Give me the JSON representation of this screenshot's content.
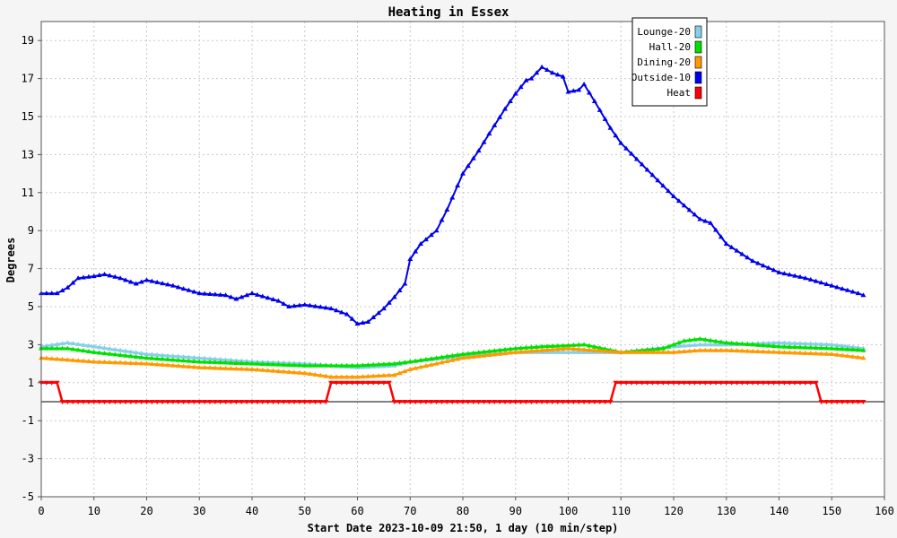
{
  "chart_data": {
    "type": "line",
    "title": "Heating in Essex",
    "xlabel": "Start Date 2023-10-09 21:50, 1 day (10 min/step)",
    "ylabel": "Degrees",
    "xlim": [
      0,
      160
    ],
    "ylim": [
      -5,
      20
    ],
    "x_ticks": [
      0,
      10,
      20,
      30,
      40,
      50,
      60,
      70,
      80,
      90,
      100,
      110,
      120,
      130,
      140,
      150,
      160
    ],
    "y_ticks": [
      -5,
      -3,
      -1,
      1,
      3,
      5,
      7,
      9,
      11,
      13,
      15,
      17,
      19
    ],
    "grid": true,
    "legend_position": "top-right",
    "series": [
      {
        "name": "Lounge-20",
        "color": "#87ceeb",
        "x": [
          0,
          5,
          10,
          20,
          30,
          40,
          50,
          60,
          67,
          70,
          80,
          90,
          100,
          110,
          120,
          125,
          130,
          140,
          150,
          156
        ],
        "values": [
          2.9,
          3.1,
          2.9,
          2.5,
          2.3,
          2.1,
          2.0,
          1.8,
          1.9,
          2.1,
          2.4,
          2.6,
          2.6,
          2.6,
          2.9,
          3.0,
          3.0,
          3.1,
          3.0,
          2.8
        ]
      },
      {
        "name": "Hall-20",
        "color": "#00e000",
        "x": [
          0,
          5,
          10,
          20,
          30,
          40,
          50,
          60,
          67,
          70,
          80,
          90,
          95,
          103,
          110,
          118,
          122,
          125,
          130,
          140,
          150,
          156
        ],
        "values": [
          2.8,
          2.8,
          2.6,
          2.3,
          2.1,
          2.0,
          1.9,
          1.9,
          2.0,
          2.1,
          2.5,
          2.8,
          2.9,
          3.0,
          2.6,
          2.8,
          3.2,
          3.3,
          3.1,
          2.9,
          2.8,
          2.7
        ]
      },
      {
        "name": "Dining-20",
        "color": "#ff9900",
        "x": [
          0,
          5,
          10,
          20,
          30,
          40,
          50,
          55,
          60,
          67,
          70,
          80,
          90,
          100,
          110,
          120,
          125,
          130,
          140,
          150,
          156
        ],
        "values": [
          2.3,
          2.2,
          2.1,
          2.0,
          1.8,
          1.7,
          1.5,
          1.3,
          1.3,
          1.4,
          1.7,
          2.3,
          2.6,
          2.8,
          2.6,
          2.6,
          2.7,
          2.7,
          2.6,
          2.5,
          2.3
        ]
      },
      {
        "name": "Outside-10",
        "color": "#0000ee",
        "x": [
          0,
          3,
          5,
          7,
          10,
          12,
          15,
          18,
          20,
          25,
          30,
          35,
          37,
          40,
          45,
          47,
          50,
          55,
          58,
          60,
          62,
          65,
          67,
          69,
          70,
          72,
          75,
          77,
          80,
          83,
          85,
          88,
          90,
          92,
          93,
          95,
          97,
          99,
          100,
          102,
          103,
          105,
          108,
          110,
          115,
          120,
          125,
          127,
          130,
          135,
          140,
          145,
          150,
          155,
          156
        ],
        "values": [
          5.7,
          5.7,
          6.0,
          6.5,
          6.6,
          6.7,
          6.5,
          6.2,
          6.4,
          6.1,
          5.7,
          5.6,
          5.4,
          5.7,
          5.3,
          5.0,
          5.1,
          4.9,
          4.6,
          4.1,
          4.2,
          4.9,
          5.5,
          6.2,
          7.5,
          8.3,
          9.0,
          10.1,
          12.0,
          13.2,
          14.1,
          15.4,
          16.2,
          16.9,
          17.0,
          17.6,
          17.3,
          17.1,
          16.3,
          16.4,
          16.7,
          15.8,
          14.4,
          13.6,
          12.2,
          10.8,
          9.6,
          9.4,
          8.3,
          7.4,
          6.8,
          6.5,
          6.1,
          5.7,
          5.6
        ]
      },
      {
        "name": "Heat",
        "color": "#ff0000",
        "x": [
          0,
          3,
          4,
          54,
          55,
          66,
          67,
          108,
          109,
          147,
          148,
          156
        ],
        "values": [
          1,
          1,
          0,
          0,
          1,
          1,
          0,
          0,
          1,
          1,
          0,
          0
        ]
      }
    ]
  }
}
